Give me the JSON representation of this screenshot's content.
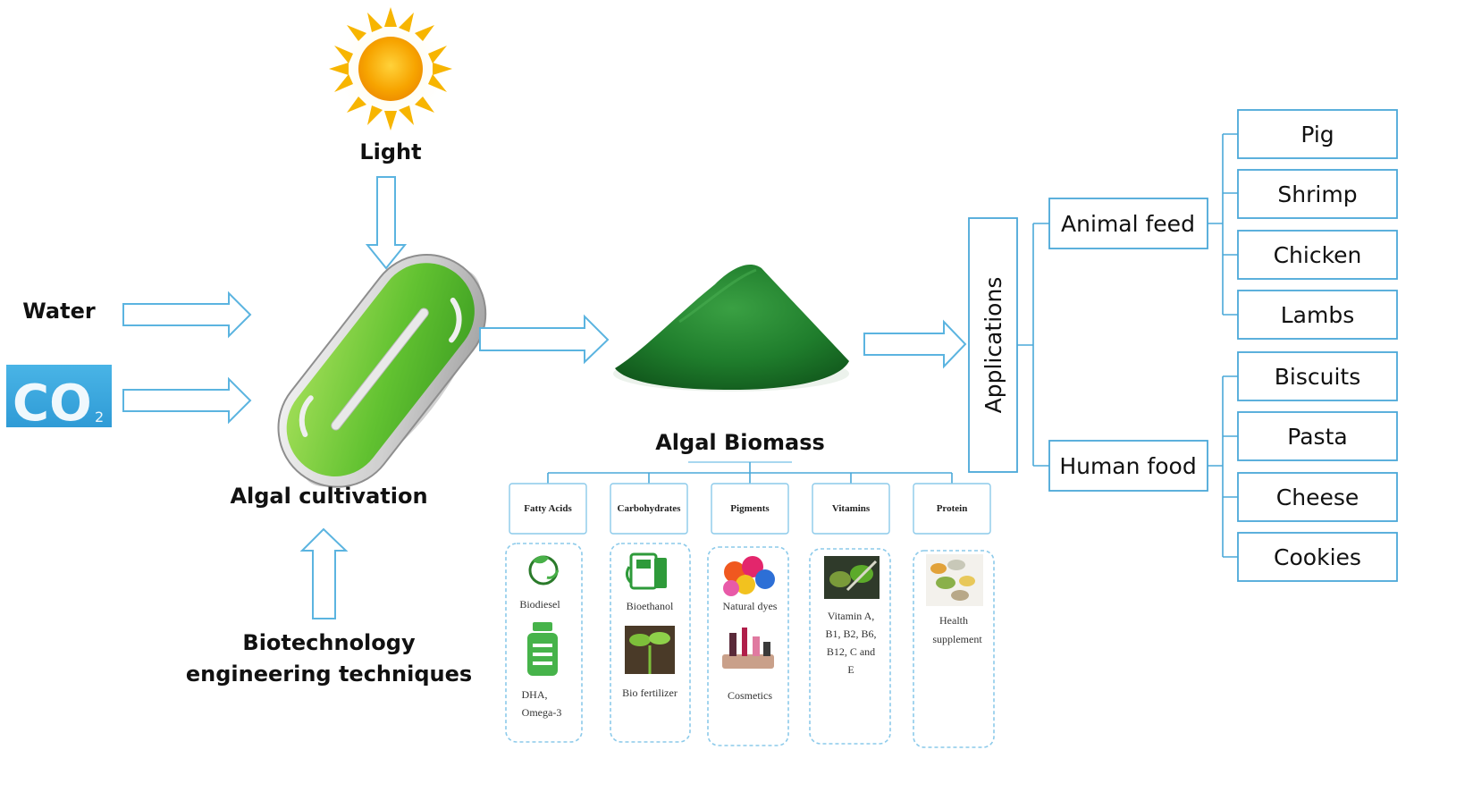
{
  "inputs": {
    "light": "Light",
    "water": "Water",
    "co2_image_text": "CO",
    "co2_subscript": "2"
  },
  "cultivation": {
    "label": "Algal cultivation",
    "biotech_line1": "Biotechnology",
    "biotech_line2": "engineering techniques"
  },
  "biomass": {
    "label": "Algal Biomass",
    "categories": [
      {
        "title": "Fatty Acids",
        "items": [
          "Biodiesel",
          "DHA,",
          "Omega-3"
        ]
      },
      {
        "title": "Carbohydrates",
        "items": [
          "Bioethanol",
          "Bio fertilizer"
        ]
      },
      {
        "title": "Pigments",
        "items": [
          "Natural dyes",
          "Cosmetics"
        ]
      },
      {
        "title": "Vitamins",
        "items": [
          "Vitamin A,",
          "B1, B2, B6,",
          "B12, C and",
          "E"
        ]
      },
      {
        "title": "Protein",
        "items": [
          "Health",
          "supplement"
        ]
      }
    ]
  },
  "applications": {
    "label": "Applications",
    "animal_feed": {
      "label": "Animal feed",
      "items": [
        "Pig",
        "Shrimp",
        "Chicken",
        "Lambs"
      ]
    },
    "human_food": {
      "label": "Human food",
      "items": [
        "Biscuits",
        "Pasta",
        "Cheese",
        "Cookies"
      ]
    }
  },
  "colors": {
    "arrow_outline": "#5bb4e0",
    "tree_line": "#4aa8d8",
    "sun": "#f5a800",
    "algae_green": "#2e8b2e",
    "pond_green": "#6cc63a"
  }
}
